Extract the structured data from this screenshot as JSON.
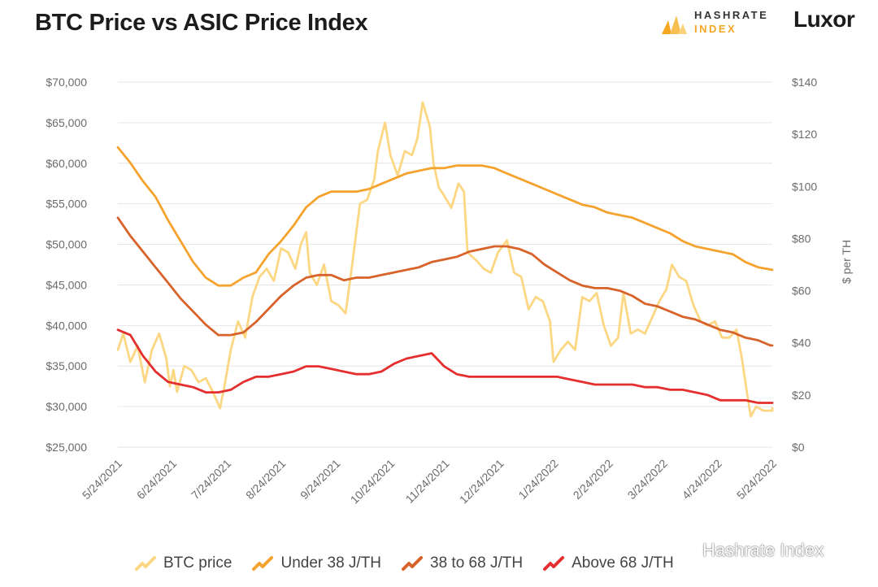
{
  "header": {
    "title": "BTC Price vs ASIC Price Index"
  },
  "branding": {
    "logo_line1": "HASHRATE",
    "logo_line2": "INDEX",
    "luxor": "Luxor"
  },
  "watermark": {
    "text": "Hashrate Index"
  },
  "colors": {
    "btc": "#fcd783",
    "under38": "#f5a32e",
    "mid": "#d8632a",
    "above68": "#e52f2f",
    "grid": "#e6e6e6",
    "logo_orange": "#f5a623"
  },
  "chart_data": {
    "type": "line",
    "title": "BTC Price vs ASIC Price Index",
    "xlabel": "",
    "ylabel_left": "",
    "ylabel_right": "$ per TH",
    "x_tick_labels": [
      "5/24/2021",
      "6/24/2021",
      "7/24/2021",
      "8/24/2021",
      "9/24/2021",
      "10/24/2021",
      "11/24/2021",
      "12/24/2021",
      "1/24/2022",
      "2/24/2022",
      "3/24/2022",
      "4/24/2022",
      "5/24/2022"
    ],
    "y_left_ticks": [
      "$25,000",
      "$30,000",
      "$35,000",
      "$40,000",
      "$45,000",
      "$50,000",
      "$55,000",
      "$60,000",
      "$65,000",
      "$70,000"
    ],
    "y_right_ticks": [
      "$0",
      "$20",
      "$40",
      "$60",
      "$80",
      "$100",
      "$120",
      "$140"
    ],
    "ylim_left": [
      25000,
      70000
    ],
    "ylim_right": [
      0,
      140
    ],
    "grid": true,
    "legend_position": "bottom",
    "series": [
      {
        "name": "BTC price",
        "axis": "left",
        "color_key": "btc",
        "points": [
          [
            "2021-05-24",
            37000
          ],
          [
            "2021-05-27",
            39000
          ],
          [
            "2021-05-31",
            35500
          ],
          [
            "2021-06-04",
            37500
          ],
          [
            "2021-06-08",
            33000
          ],
          [
            "2021-06-12",
            37000
          ],
          [
            "2021-06-16",
            39000
          ],
          [
            "2021-06-20",
            36000
          ],
          [
            "2021-06-22",
            32500
          ],
          [
            "2021-06-24",
            34500
          ],
          [
            "2021-06-26",
            31800
          ],
          [
            "2021-06-30",
            35000
          ],
          [
            "2021-07-04",
            34500
          ],
          [
            "2021-07-08",
            33000
          ],
          [
            "2021-07-12",
            33500
          ],
          [
            "2021-07-16",
            31800
          ],
          [
            "2021-07-20",
            29800
          ],
          [
            "2021-07-22",
            32000
          ],
          [
            "2021-07-26",
            37000
          ],
          [
            "2021-07-30",
            40500
          ],
          [
            "2021-08-03",
            38500
          ],
          [
            "2021-08-07",
            43500
          ],
          [
            "2021-08-11",
            46000
          ],
          [
            "2021-08-15",
            47000
          ],
          [
            "2021-08-19",
            45500
          ],
          [
            "2021-08-23",
            49500
          ],
          [
            "2021-08-27",
            49000
          ],
          [
            "2021-08-31",
            47000
          ],
          [
            "2021-09-03",
            50000
          ],
          [
            "2021-09-06",
            51500
          ],
          [
            "2021-09-08",
            46500
          ],
          [
            "2021-09-12",
            45000
          ],
          [
            "2021-09-16",
            47500
          ],
          [
            "2021-09-20",
            43000
          ],
          [
            "2021-09-24",
            42500
          ],
          [
            "2021-09-28",
            41500
          ],
          [
            "2021-10-02",
            48000
          ],
          [
            "2021-10-06",
            55000
          ],
          [
            "2021-10-10",
            55500
          ],
          [
            "2021-10-14",
            58000
          ],
          [
            "2021-10-16",
            61500
          ],
          [
            "2021-10-20",
            65000
          ],
          [
            "2021-10-23",
            61000
          ],
          [
            "2021-10-27",
            58500
          ],
          [
            "2021-10-31",
            61500
          ],
          [
            "2021-11-04",
            61000
          ],
          [
            "2021-11-07",
            63000
          ],
          [
            "2021-11-10",
            67500
          ],
          [
            "2021-11-14",
            64500
          ],
          [
            "2021-11-16",
            60000
          ],
          [
            "2021-11-19",
            57000
          ],
          [
            "2021-11-22",
            56000
          ],
          [
            "2021-11-26",
            54500
          ],
          [
            "2021-11-30",
            57500
          ],
          [
            "2021-12-03",
            56500
          ],
          [
            "2021-12-05",
            49000
          ],
          [
            "2021-12-10",
            48000
          ],
          [
            "2021-12-14",
            47000
          ],
          [
            "2021-12-18",
            46500
          ],
          [
            "2021-12-22",
            49000
          ],
          [
            "2021-12-27",
            50500
          ],
          [
            "2021-12-31",
            46500
          ],
          [
            "2022-01-04",
            46000
          ],
          [
            "2022-01-08",
            42000
          ],
          [
            "2022-01-12",
            43500
          ],
          [
            "2022-01-16",
            43000
          ],
          [
            "2022-01-20",
            40500
          ],
          [
            "2022-01-22",
            35500
          ],
          [
            "2022-01-26",
            37000
          ],
          [
            "2022-01-30",
            38000
          ],
          [
            "2022-02-03",
            37000
          ],
          [
            "2022-02-07",
            43500
          ],
          [
            "2022-02-11",
            43000
          ],
          [
            "2022-02-15",
            44000
          ],
          [
            "2022-02-19",
            40000
          ],
          [
            "2022-02-23",
            37500
          ],
          [
            "2022-02-27",
            38500
          ],
          [
            "2022-03-02",
            44000
          ],
          [
            "2022-03-06",
            39000
          ],
          [
            "2022-03-10",
            39500
          ],
          [
            "2022-03-14",
            39000
          ],
          [
            "2022-03-18",
            41000
          ],
          [
            "2022-03-22",
            43000
          ],
          [
            "2022-03-26",
            44500
          ],
          [
            "2022-03-29",
            47500
          ],
          [
            "2022-04-02",
            46000
          ],
          [
            "2022-04-06",
            45500
          ],
          [
            "2022-04-10",
            42500
          ],
          [
            "2022-04-14",
            40500
          ],
          [
            "2022-04-18",
            40000
          ],
          [
            "2022-04-22",
            40500
          ],
          [
            "2022-04-26",
            38500
          ],
          [
            "2022-04-30",
            38500
          ],
          [
            "2022-05-04",
            39500
          ],
          [
            "2022-05-07",
            36000
          ],
          [
            "2022-05-10",
            31500
          ],
          [
            "2022-05-12",
            28800
          ],
          [
            "2022-05-15",
            30000
          ],
          [
            "2022-05-19",
            29500
          ],
          [
            "2022-05-24",
            29500
          ],
          [
            "2022-05-29",
            29800
          ]
        ]
      },
      {
        "name": "Under 38 J/TH",
        "axis": "right",
        "color_key": "under38",
        "points": [
          [
            "2021-05-24",
            115
          ],
          [
            "2021-05-31",
            109
          ],
          [
            "2021-06-07",
            102
          ],
          [
            "2021-06-14",
            96
          ],
          [
            "2021-06-21",
            87
          ],
          [
            "2021-06-28",
            79
          ],
          [
            "2021-07-05",
            71
          ],
          [
            "2021-07-12",
            65
          ],
          [
            "2021-07-19",
            62
          ],
          [
            "2021-07-26",
            62
          ],
          [
            "2021-08-02",
            65
          ],
          [
            "2021-08-09",
            67
          ],
          [
            "2021-08-16",
            74
          ],
          [
            "2021-08-23",
            79
          ],
          [
            "2021-08-30",
            85
          ],
          [
            "2021-09-06",
            92
          ],
          [
            "2021-09-13",
            96
          ],
          [
            "2021-09-20",
            98
          ],
          [
            "2021-09-27",
            98
          ],
          [
            "2021-10-04",
            98
          ],
          [
            "2021-10-11",
            99
          ],
          [
            "2021-10-18",
            101
          ],
          [
            "2021-10-25",
            103
          ],
          [
            "2021-11-01",
            105
          ],
          [
            "2021-11-08",
            106
          ],
          [
            "2021-11-15",
            107
          ],
          [
            "2021-11-22",
            107
          ],
          [
            "2021-11-29",
            108
          ],
          [
            "2021-12-06",
            108
          ],
          [
            "2021-12-13",
            108
          ],
          [
            "2021-12-20",
            107
          ],
          [
            "2021-12-27",
            105
          ],
          [
            "2022-01-03",
            103
          ],
          [
            "2022-01-10",
            101
          ],
          [
            "2022-01-17",
            99
          ],
          [
            "2022-01-24",
            97
          ],
          [
            "2022-01-31",
            95
          ],
          [
            "2022-02-07",
            93
          ],
          [
            "2022-02-14",
            92
          ],
          [
            "2022-02-21",
            90
          ],
          [
            "2022-02-28",
            89
          ],
          [
            "2022-03-07",
            88
          ],
          [
            "2022-03-14",
            86
          ],
          [
            "2022-03-21",
            84
          ],
          [
            "2022-03-28",
            82
          ],
          [
            "2022-04-04",
            79
          ],
          [
            "2022-04-11",
            77
          ],
          [
            "2022-04-18",
            76
          ],
          [
            "2022-04-25",
            75
          ],
          [
            "2022-05-02",
            74
          ],
          [
            "2022-05-09",
            71
          ],
          [
            "2022-05-16",
            69
          ],
          [
            "2022-05-29",
            68
          ]
        ]
      },
      {
        "name": "38 to 68 J/TH",
        "axis": "right",
        "color_key": "mid",
        "points": [
          [
            "2021-05-24",
            88
          ],
          [
            "2021-05-31",
            81
          ],
          [
            "2021-06-07",
            75
          ],
          [
            "2021-06-14",
            69
          ],
          [
            "2021-06-21",
            63
          ],
          [
            "2021-06-28",
            57
          ],
          [
            "2021-07-05",
            52
          ],
          [
            "2021-07-12",
            47
          ],
          [
            "2021-07-19",
            43
          ],
          [
            "2021-07-26",
            43
          ],
          [
            "2021-08-02",
            44
          ],
          [
            "2021-08-09",
            48
          ],
          [
            "2021-08-16",
            53
          ],
          [
            "2021-08-23",
            58
          ],
          [
            "2021-08-30",
            62
          ],
          [
            "2021-09-06",
            65
          ],
          [
            "2021-09-13",
            66
          ],
          [
            "2021-09-20",
            66
          ],
          [
            "2021-09-27",
            64
          ],
          [
            "2021-10-04",
            65
          ],
          [
            "2021-10-11",
            65
          ],
          [
            "2021-10-18",
            66
          ],
          [
            "2021-10-25",
            67
          ],
          [
            "2021-11-01",
            68
          ],
          [
            "2021-11-08",
            69
          ],
          [
            "2021-11-15",
            71
          ],
          [
            "2021-11-22",
            72
          ],
          [
            "2021-11-29",
            73
          ],
          [
            "2021-12-06",
            75
          ],
          [
            "2021-12-13",
            76
          ],
          [
            "2021-12-20",
            77
          ],
          [
            "2021-12-27",
            77
          ],
          [
            "2022-01-03",
            76
          ],
          [
            "2022-01-10",
            74
          ],
          [
            "2022-01-17",
            70
          ],
          [
            "2022-01-24",
            67
          ],
          [
            "2022-01-31",
            64
          ],
          [
            "2022-02-07",
            62
          ],
          [
            "2022-02-14",
            61
          ],
          [
            "2022-02-21",
            61
          ],
          [
            "2022-02-28",
            60
          ],
          [
            "2022-03-07",
            58
          ],
          [
            "2022-03-14",
            55
          ],
          [
            "2022-03-21",
            54
          ],
          [
            "2022-03-28",
            52
          ],
          [
            "2022-04-04",
            50
          ],
          [
            "2022-04-11",
            49
          ],
          [
            "2022-04-18",
            47
          ],
          [
            "2022-04-25",
            45
          ],
          [
            "2022-05-02",
            44
          ],
          [
            "2022-05-09",
            42
          ],
          [
            "2022-05-16",
            41
          ],
          [
            "2022-05-23",
            39
          ],
          [
            "2022-05-29",
            39
          ]
        ]
      },
      {
        "name": "Above 68 J/TH",
        "axis": "right",
        "color_key": "above68",
        "points": [
          [
            "2021-05-24",
            45
          ],
          [
            "2021-05-31",
            43
          ],
          [
            "2021-06-07",
            35
          ],
          [
            "2021-06-14",
            29
          ],
          [
            "2021-06-21",
            25
          ],
          [
            "2021-06-28",
            24
          ],
          [
            "2021-07-05",
            23
          ],
          [
            "2021-07-12",
            21
          ],
          [
            "2021-07-19",
            21
          ],
          [
            "2021-07-26",
            22
          ],
          [
            "2021-08-02",
            25
          ],
          [
            "2021-08-09",
            27
          ],
          [
            "2021-08-16",
            27
          ],
          [
            "2021-08-23",
            28
          ],
          [
            "2021-08-30",
            29
          ],
          [
            "2021-09-06",
            31
          ],
          [
            "2021-09-13",
            31
          ],
          [
            "2021-09-20",
            30
          ],
          [
            "2021-09-27",
            29
          ],
          [
            "2021-10-04",
            28
          ],
          [
            "2021-10-11",
            28
          ],
          [
            "2021-10-18",
            29
          ],
          [
            "2021-10-25",
            32
          ],
          [
            "2021-11-01",
            34
          ],
          [
            "2021-11-08",
            35
          ],
          [
            "2021-11-15",
            36
          ],
          [
            "2021-11-22",
            31
          ],
          [
            "2021-11-29",
            28
          ],
          [
            "2021-12-06",
            27
          ],
          [
            "2021-12-13",
            27
          ],
          [
            "2021-12-20",
            27
          ],
          [
            "2021-12-27",
            27
          ],
          [
            "2022-01-03",
            27
          ],
          [
            "2022-01-10",
            27
          ],
          [
            "2022-01-17",
            27
          ],
          [
            "2022-01-24",
            27
          ],
          [
            "2022-01-31",
            26
          ],
          [
            "2022-02-07",
            25
          ],
          [
            "2022-02-14",
            24
          ],
          [
            "2022-02-21",
            24
          ],
          [
            "2022-02-28",
            24
          ],
          [
            "2022-03-07",
            24
          ],
          [
            "2022-03-14",
            23
          ],
          [
            "2022-03-21",
            23
          ],
          [
            "2022-03-28",
            22
          ],
          [
            "2022-04-04",
            22
          ],
          [
            "2022-04-11",
            21
          ],
          [
            "2022-04-18",
            20
          ],
          [
            "2022-04-25",
            18
          ],
          [
            "2022-05-02",
            18
          ],
          [
            "2022-05-09",
            18
          ],
          [
            "2022-05-16",
            17
          ],
          [
            "2022-05-29",
            17
          ]
        ]
      }
    ]
  }
}
